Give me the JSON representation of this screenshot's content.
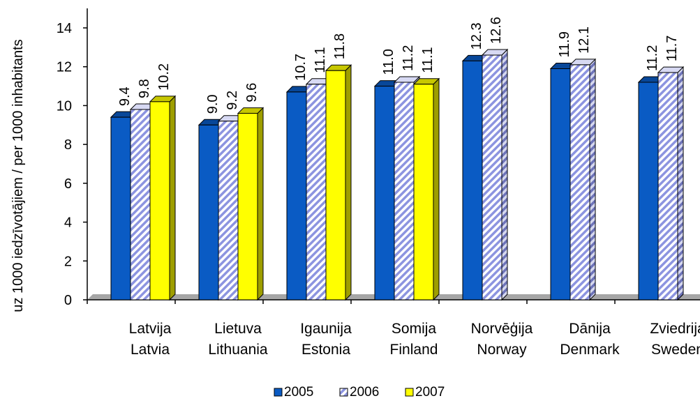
{
  "chart_data": {
    "type": "bar",
    "categories": [
      {
        "line1": "Latvija",
        "line2": "Latvia"
      },
      {
        "line1": "Lietuva",
        "line2": "Lithuania"
      },
      {
        "line1": "Igaunija",
        "line2": "Estonia"
      },
      {
        "line1": "Somija",
        "line2": "Finland"
      },
      {
        "line1": "Norvēģija",
        "line2": "Norway"
      },
      {
        "line1": "Dānija",
        "line2": "Denmark"
      },
      {
        "line1": "Zviedrija",
        "line2": "Sweden"
      }
    ],
    "series": [
      {
        "name": "2005",
        "color": "#0a5bc4",
        "pattern": "solid",
        "values": [
          9.4,
          9.0,
          10.7,
          11.0,
          12.3,
          11.9,
          11.2
        ],
        "labels": [
          "9.4",
          "9.0",
          "10.7",
          "11.0",
          "12.3",
          "11.9",
          "11.2"
        ]
      },
      {
        "name": "2006",
        "color": "#c9ccf2",
        "pattern": "hatched",
        "values": [
          9.8,
          9.2,
          11.1,
          11.2,
          12.6,
          12.1,
          11.7
        ],
        "labels": [
          "9.8",
          "9.2",
          "11.1",
          "11.2",
          "12.6",
          "12.1",
          "11.7"
        ]
      },
      {
        "name": "2007",
        "color": "#ffff00",
        "pattern": "solid",
        "values": [
          10.2,
          9.6,
          11.8,
          11.1,
          null,
          null,
          null
        ],
        "labels": [
          "10.2",
          "9.6",
          "11.8",
          "11.1",
          null,
          null,
          null
        ]
      }
    ],
    "ylabel": "uz 1000 iedzīvotājiem / per 1000 inhabitants",
    "ylim": [
      0,
      14
    ],
    "yticks": [
      "0",
      "2",
      "4",
      "6",
      "8",
      "10",
      "12",
      "14"
    ],
    "legend_position": "bottom-center",
    "grid": false
  }
}
